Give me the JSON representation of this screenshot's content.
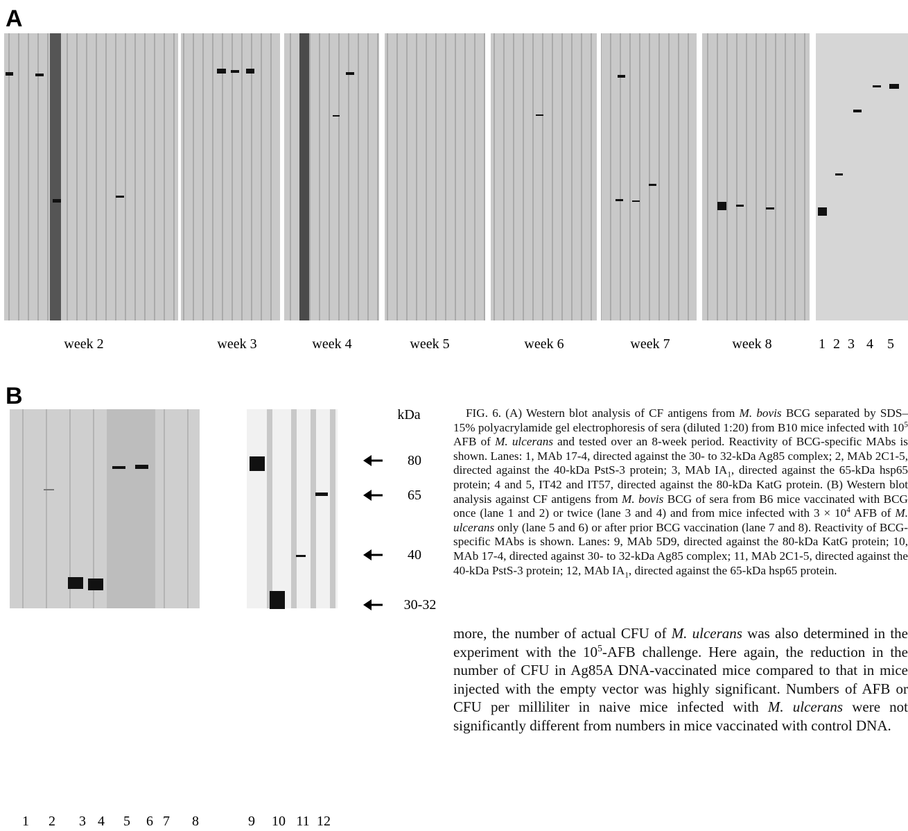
{
  "panel_a": {
    "label": "A",
    "week_labels": [
      "week 2",
      "week 3",
      "week 4",
      "week 5",
      "week 6",
      "week 7",
      "week 8"
    ],
    "lane_numbers": [
      "1",
      "2",
      "3",
      "4",
      "5"
    ]
  },
  "panel_b": {
    "label": "B",
    "lane_numbers": [
      "1",
      "2",
      "3",
      "4",
      "5",
      "6",
      "7",
      "8",
      "9",
      "10",
      "11",
      "12"
    ],
    "kda_label": "kDa",
    "markers": [
      "80",
      "65",
      "40",
      "30-32"
    ]
  },
  "caption": [
    "FIG. 6. (A) Western blot analysis of CF antigens from ",
    "M. bovis",
    " BCG separated by SDS–15% polyacrylamide gel electrophoresis of sera (diluted 1:20) from B10 mice infected with 10",
    "5",
    " AFB of ",
    "M. ulcerans",
    " and tested over an 8-week period. Reactivity of BCG-specific MAbs is shown. Lanes: 1, MAb 17-4, directed against the 30- to 32-kDa Ag85 complex; 2, MAb 2C1-5, directed against the 40-kDa PstS-3 protein; 3, MAb IA",
    "1",
    ", directed against the 65-kDa hsp65 protein; 4 and 5, IT42 and IT57, directed against the 80-kDa KatG protein. (B) Western blot analysis against CF antigens from ",
    "M. bovis",
    " BCG of sera from B6 mice vaccinated with BCG once (lane 1 and 2) or twice (lane 3 and 4) and from mice infected with 3 × 10",
    "4",
    " AFB of ",
    "M. ulcerans",
    " only (lane 5 and 6) or after prior BCG vaccination (lane 7 and 8). Reactivity of BCG-specific MAbs is shown. Lanes: 9, MAb 5D9, directed against the 80-kDa KatG protein; 10, MAb 17-4, directed against 30- to 32-kDa Ag85 complex; 11, MAb 2C1-5, directed against the 40-kDa PstS-3 protein; 12, MAb IA",
    "1",
    ", directed against the 65-kDa hsp65 protein."
  ],
  "body_text": [
    "more, the number of actual CFU of ",
    "M. ulcerans",
    " was also determined in the experiment with the 10",
    "5",
    "-AFB challenge. Here again, the reduction in the number of CFU in Ag85A DNA-vaccinated mice compared to that in mice injected with the empty vector was highly significant. Numbers of AFB or CFU per milliliter in naive mice infected with ",
    "M. ulcerans",
    " were not significantly different from numbers in mice vaccinated with control DNA."
  ]
}
